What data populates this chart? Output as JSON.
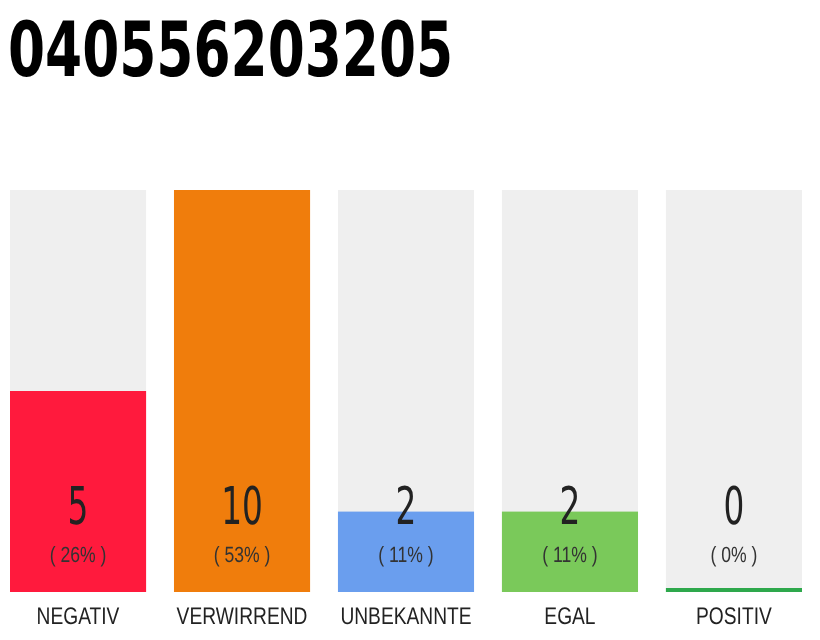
{
  "chart_data": {
    "type": "bar",
    "title": "040556203205",
    "categories": [
      "NEGATIV",
      "VERWIRREND",
      "UNBEKANNTE",
      "EGAL",
      "POSITIV"
    ],
    "values": [
      5,
      10,
      2,
      2,
      0
    ],
    "colors": [
      "#ff1a3d",
      "#f07d0c",
      "#6a9eee",
      "#7ac95a",
      "#2ea84c"
    ],
    "value_labels": [
      "5",
      "10",
      "2",
      "2",
      "0"
    ],
    "annotations": [
      "( 26% )",
      "( 53% )",
      "( 11% )",
      "( 11% )",
      "( 0% )"
    ]
  }
}
